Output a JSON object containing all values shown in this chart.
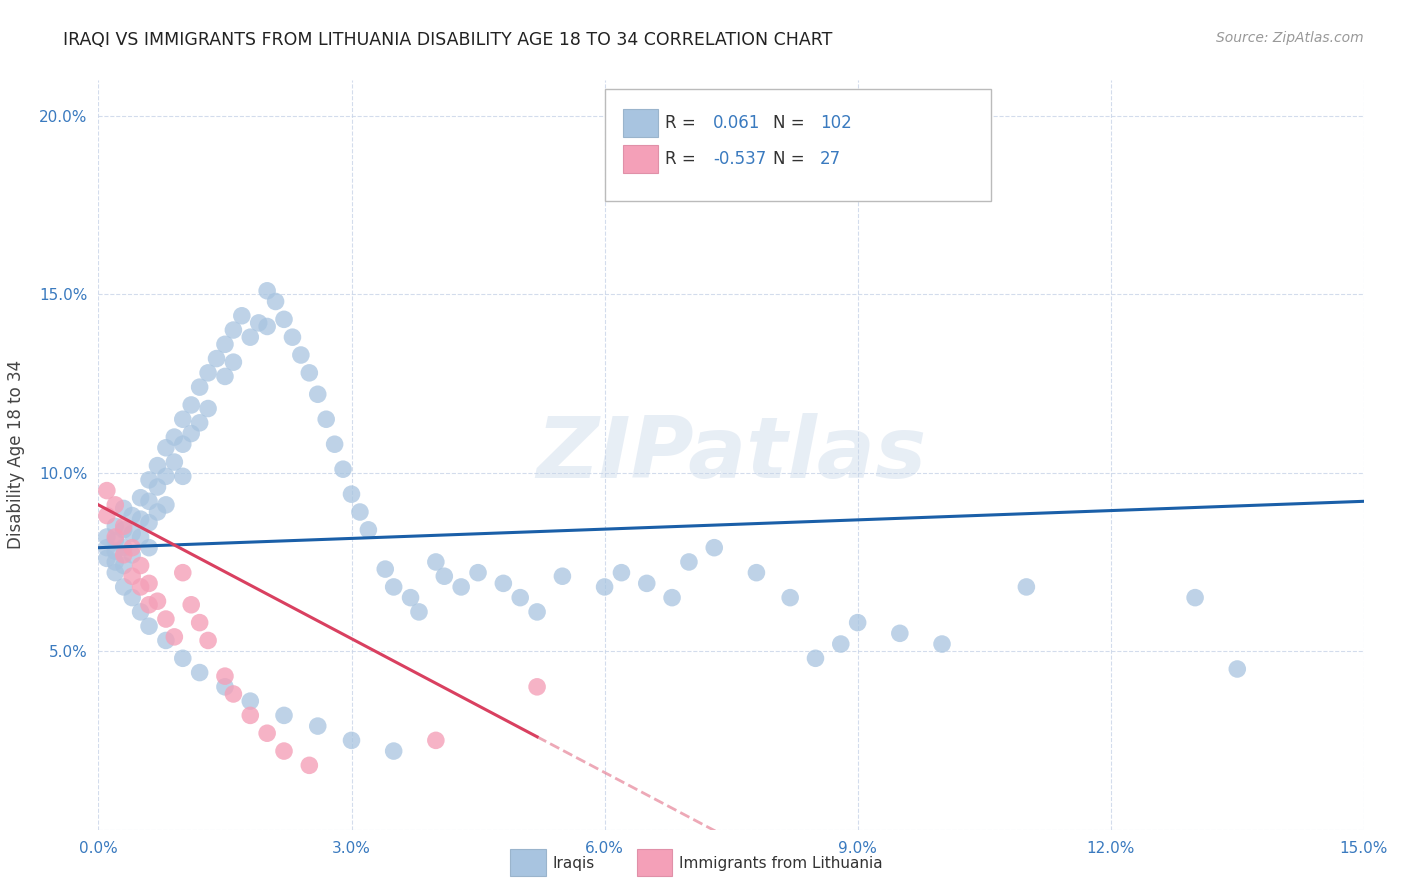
{
  "title": "IRAQI VS IMMIGRANTS FROM LITHUANIA DISABILITY AGE 18 TO 34 CORRELATION CHART",
  "source": "Source: ZipAtlas.com",
  "ylabel": "Disability Age 18 to 34",
  "xlim": [
    0.0,
    0.15
  ],
  "ylim": [
    0.0,
    0.21
  ],
  "xticks": [
    0.0,
    0.03,
    0.06,
    0.09,
    0.12,
    0.15
  ],
  "yticks": [
    0.0,
    0.05,
    0.1,
    0.15,
    0.2
  ],
  "xtick_labels": [
    "0.0%",
    "3.0%",
    "6.0%",
    "9.0%",
    "12.0%",
    "15.0%"
  ],
  "ytick_labels": [
    "",
    "5.0%",
    "10.0%",
    "15.0%",
    "20.0%"
  ],
  "legend_iraqis_R": "0.061",
  "legend_iraqis_N": "102",
  "legend_lith_R": "-0.537",
  "legend_lith_N": "27",
  "iraqis_color": "#a8c4e0",
  "lith_color": "#f4a0b8",
  "iraqis_line_color": "#1a5fa8",
  "lith_line_color": "#d94060",
  "background_color": "#ffffff",
  "watermark": "ZIPatlas",
  "iraqis_line_x0": 0.0,
  "iraqis_line_y0": 0.079,
  "iraqis_line_x1": 0.15,
  "iraqis_line_y1": 0.092,
  "lith_line_x0": 0.0,
  "lith_line_y0": 0.091,
  "lith_line_solid_end": 0.052,
  "lith_line_dash_end": 0.085,
  "lith_slope": -1.25,
  "iraqis_x": [
    0.001,
    0.001,
    0.001,
    0.002,
    0.002,
    0.002,
    0.002,
    0.003,
    0.003,
    0.003,
    0.003,
    0.004,
    0.004,
    0.004,
    0.005,
    0.005,
    0.005,
    0.006,
    0.006,
    0.006,
    0.006,
    0.007,
    0.007,
    0.007,
    0.008,
    0.008,
    0.008,
    0.009,
    0.009,
    0.01,
    0.01,
    0.01,
    0.011,
    0.011,
    0.012,
    0.012,
    0.013,
    0.013,
    0.014,
    0.015,
    0.015,
    0.016,
    0.016,
    0.017,
    0.018,
    0.019,
    0.02,
    0.02,
    0.021,
    0.022,
    0.023,
    0.024,
    0.025,
    0.026,
    0.027,
    0.028,
    0.029,
    0.03,
    0.031,
    0.032,
    0.034,
    0.035,
    0.037,
    0.038,
    0.04,
    0.041,
    0.043,
    0.045,
    0.048,
    0.05,
    0.052,
    0.055,
    0.06,
    0.062,
    0.065,
    0.068,
    0.07,
    0.073,
    0.078,
    0.082,
    0.085,
    0.088,
    0.09,
    0.095,
    0.1,
    0.11,
    0.13,
    0.135,
    0.002,
    0.003,
    0.004,
    0.005,
    0.006,
    0.008,
    0.01,
    0.012,
    0.015,
    0.018,
    0.022,
    0.026,
    0.03,
    0.035
  ],
  "iraqis_y": [
    0.082,
    0.079,
    0.076,
    0.085,
    0.081,
    0.078,
    0.075,
    0.09,
    0.084,
    0.079,
    0.074,
    0.088,
    0.083,
    0.077,
    0.093,
    0.087,
    0.082,
    0.098,
    0.092,
    0.086,
    0.079,
    0.102,
    0.096,
    0.089,
    0.107,
    0.099,
    0.091,
    0.11,
    0.103,
    0.115,
    0.108,
    0.099,
    0.119,
    0.111,
    0.124,
    0.114,
    0.128,
    0.118,
    0.132,
    0.136,
    0.127,
    0.14,
    0.131,
    0.144,
    0.138,
    0.142,
    0.151,
    0.141,
    0.148,
    0.143,
    0.138,
    0.133,
    0.128,
    0.122,
    0.115,
    0.108,
    0.101,
    0.094,
    0.089,
    0.084,
    0.073,
    0.068,
    0.065,
    0.061,
    0.075,
    0.071,
    0.068,
    0.072,
    0.069,
    0.065,
    0.061,
    0.071,
    0.068,
    0.072,
    0.069,
    0.065,
    0.075,
    0.079,
    0.072,
    0.065,
    0.048,
    0.052,
    0.058,
    0.055,
    0.052,
    0.068,
    0.065,
    0.045,
    0.072,
    0.068,
    0.065,
    0.061,
    0.057,
    0.053,
    0.048,
    0.044,
    0.04,
    0.036,
    0.032,
    0.029,
    0.025,
    0.022
  ],
  "lith_x": [
    0.001,
    0.001,
    0.002,
    0.002,
    0.003,
    0.003,
    0.004,
    0.004,
    0.005,
    0.005,
    0.006,
    0.006,
    0.007,
    0.008,
    0.009,
    0.01,
    0.011,
    0.012,
    0.013,
    0.015,
    0.016,
    0.018,
    0.02,
    0.022,
    0.025,
    0.052,
    0.04
  ],
  "lith_y": [
    0.095,
    0.088,
    0.091,
    0.082,
    0.085,
    0.077,
    0.079,
    0.071,
    0.074,
    0.068,
    0.069,
    0.063,
    0.064,
    0.059,
    0.054,
    0.072,
    0.063,
    0.058,
    0.053,
    0.043,
    0.038,
    0.032,
    0.027,
    0.022,
    0.018,
    0.04,
    0.025
  ]
}
